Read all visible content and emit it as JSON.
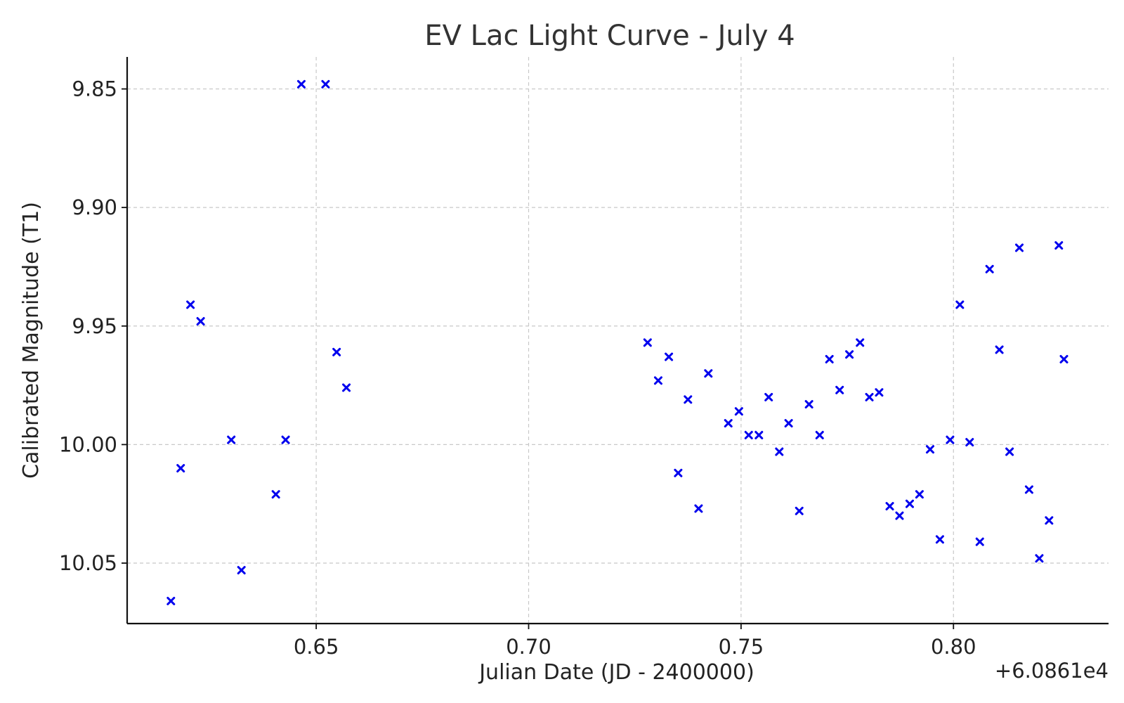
{
  "chart_data": {
    "type": "scatter",
    "title": "EV Lac Light Curve - July 4",
    "xlabel": "Julian Date (JD - 2400000)",
    "ylabel": "Calibrated Magnitude (T1)",
    "x_offset_label": "+6.0861e4",
    "x_offset": 60861,
    "xlim": [
      0.6055,
      0.8365
    ],
    "ylim": [
      10.0755,
      9.8365
    ],
    "y_inverted": true,
    "xticks": [
      0.65,
      0.7,
      0.75,
      0.8
    ],
    "xtick_labels": [
      "0.65",
      "0.70",
      "0.75",
      "0.80"
    ],
    "yticks": [
      9.85,
      9.9,
      9.95,
      10.0,
      10.05
    ],
    "ytick_labels": [
      "9.85",
      "9.90",
      "9.95",
      "10.00",
      "10.05"
    ],
    "grid": true,
    "marker": "x",
    "color": "#0000ee",
    "series": [
      {
        "points": [
          [
            0.6158,
            10.066
          ],
          [
            0.6181,
            10.01
          ],
          [
            0.6204,
            9.941
          ],
          [
            0.6228,
            9.948
          ],
          [
            0.63,
            9.998
          ],
          [
            0.6324,
            10.053
          ],
          [
            0.6405,
            10.021
          ],
          [
            0.6428,
            9.998
          ],
          [
            0.6465,
            9.848
          ],
          [
            0.6522,
            9.848
          ],
          [
            0.6548,
            9.961
          ],
          [
            0.6571,
            9.976
          ],
          [
            0.728,
            9.957
          ],
          [
            0.7305,
            9.973
          ],
          [
            0.733,
            9.963
          ],
          [
            0.7352,
            10.012
          ],
          [
            0.7375,
            9.981
          ],
          [
            0.74,
            10.027
          ],
          [
            0.7423,
            9.97
          ],
          [
            0.747,
            9.991
          ],
          [
            0.7495,
            9.986
          ],
          [
            0.7518,
            9.996
          ],
          [
            0.7542,
            9.996
          ],
          [
            0.7565,
            9.98
          ],
          [
            0.759,
            10.003
          ],
          [
            0.7612,
            9.991
          ],
          [
            0.7637,
            10.028
          ],
          [
            0.766,
            9.983
          ],
          [
            0.7685,
            9.996
          ],
          [
            0.7708,
            9.964
          ],
          [
            0.7732,
            9.977
          ],
          [
            0.7755,
            9.962
          ],
          [
            0.778,
            9.957
          ],
          [
            0.7802,
            9.98
          ],
          [
            0.7825,
            9.978
          ],
          [
            0.785,
            10.026
          ],
          [
            0.7873,
            10.03
          ],
          [
            0.7897,
            10.025
          ],
          [
            0.792,
            10.021
          ],
          [
            0.7945,
            10.002
          ],
          [
            0.7968,
            10.04
          ],
          [
            0.7992,
            9.998
          ],
          [
            0.8015,
            9.941
          ],
          [
            0.8038,
            9.999
          ],
          [
            0.8062,
            10.041
          ],
          [
            0.8085,
            9.926
          ],
          [
            0.8108,
            9.96
          ],
          [
            0.8132,
            10.003
          ],
          [
            0.8155,
            9.917
          ],
          [
            0.8178,
            10.019
          ],
          [
            0.8202,
            10.048
          ],
          [
            0.8225,
            10.032
          ],
          [
            0.8248,
            9.916
          ],
          [
            0.826,
            9.964
          ]
        ]
      }
    ]
  }
}
